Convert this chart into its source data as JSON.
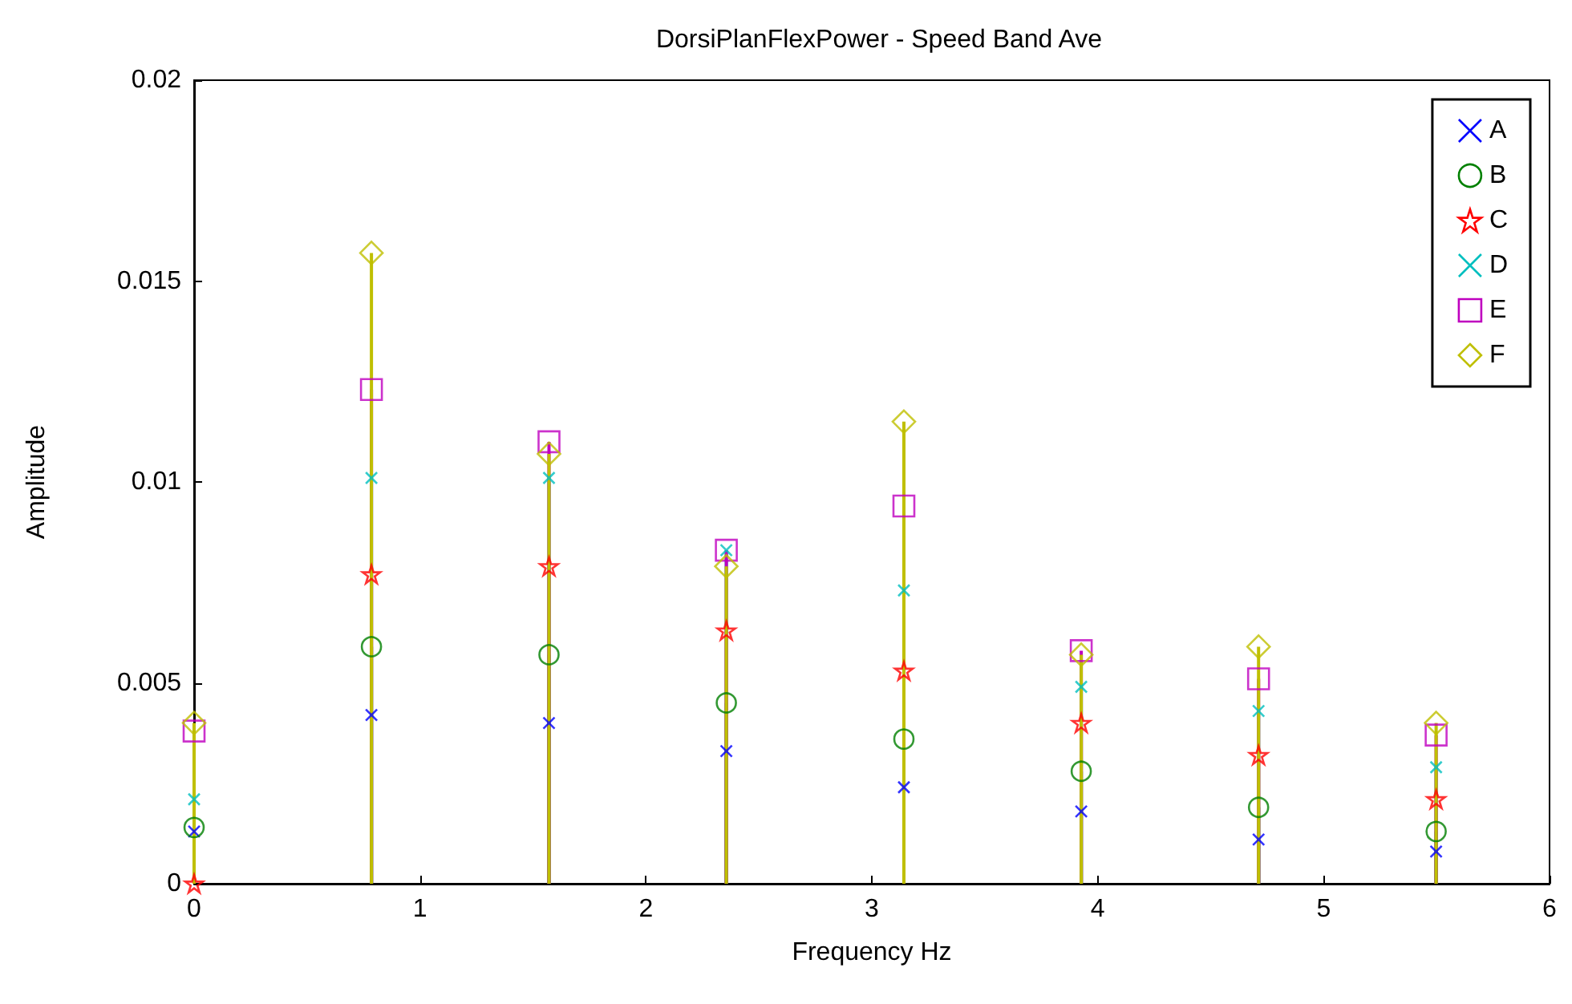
{
  "chart_data": {
    "type": "lollipop",
    "title": "DorsiPlanFlexPower - Speed Band Ave",
    "xlabel": "Frequency Hz",
    "ylabel": "Amplitude",
    "x": [
      0,
      0.785,
      1.571,
      2.356,
      3.142,
      3.927,
      4.712,
      5.498
    ],
    "xlim": [
      0,
      6
    ],
    "xticks": [
      0,
      1,
      2,
      3,
      4,
      5,
      6
    ],
    "ylim": [
      0,
      0.02
    ],
    "yticks": [
      0,
      0.005,
      0.01,
      0.015,
      0.02
    ],
    "grid": false,
    "legend": "top right",
    "series": [
      {
        "name": "A",
        "color": "#0000ff",
        "marker": "cross",
        "values": [
          0.0013,
          0.0042,
          0.004,
          0.0033,
          0.0024,
          0.0018,
          0.0011,
          0.0008
        ]
      },
      {
        "name": "B",
        "color": "#008000",
        "marker": "circle",
        "values": [
          0.0014,
          0.0059,
          0.0057,
          0.0045,
          0.0036,
          0.0028,
          0.0019,
          0.0013
        ]
      },
      {
        "name": "C",
        "color": "#ff0000",
        "marker": "star",
        "values": [
          0,
          0.0077,
          0.0079,
          0.0063,
          0.0053,
          0.004,
          0.0032,
          0.0021
        ]
      },
      {
        "name": "D",
        "color": "#00bfbf",
        "marker": "cross",
        "values": [
          0.0021,
          0.0101,
          0.0101,
          0.0083,
          0.0073,
          0.0049,
          0.0043,
          0.0029
        ]
      },
      {
        "name": "E",
        "color": "#bf00bf",
        "marker": "square",
        "values": [
          0.0038,
          0.0123,
          0.011,
          0.0083,
          0.0094,
          0.0058,
          0.0051,
          0.0037
        ]
      },
      {
        "name": "F",
        "color": "#bfbf00",
        "marker": "diamond",
        "values": [
          0.004,
          0.0157,
          0.0107,
          0.0079,
          0.0115,
          0.0057,
          0.0059,
          0.004
        ]
      }
    ]
  }
}
